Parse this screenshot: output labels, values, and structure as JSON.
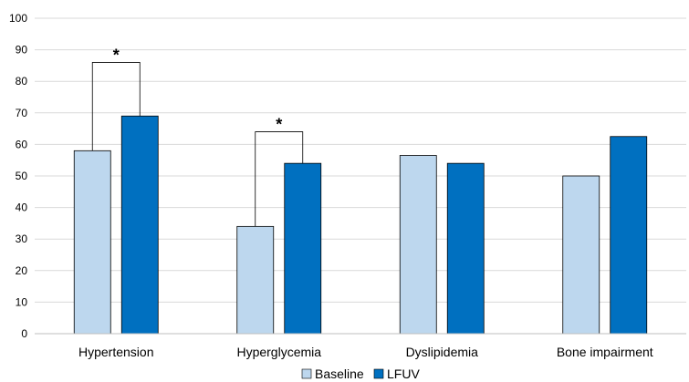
{
  "chart_data": {
    "type": "bar",
    "title": "",
    "xlabel": "",
    "ylabel": "",
    "ylim": [
      0,
      100
    ],
    "yticks": [
      0,
      10,
      20,
      30,
      40,
      50,
      60,
      70,
      80,
      90,
      100
    ],
    "grid": true,
    "legend_position": "bottom",
    "categories": [
      "Hypertension",
      "Hyperglycemia",
      "Dyslipidemia",
      "Bone impairment"
    ],
    "series": [
      {
        "name": "Baseline",
        "color": "#BDD7EE",
        "values": [
          58,
          34,
          56.5,
          50
        ]
      },
      {
        "name": "LFUV",
        "color": "#0070C0",
        "values": [
          69,
          54,
          54,
          62.5
        ]
      }
    ],
    "annotations": [
      {
        "text": "*",
        "category_index": 0,
        "bracket_top": 86
      },
      {
        "text": "*",
        "category_index": 1,
        "bracket_top": 64
      }
    ]
  }
}
